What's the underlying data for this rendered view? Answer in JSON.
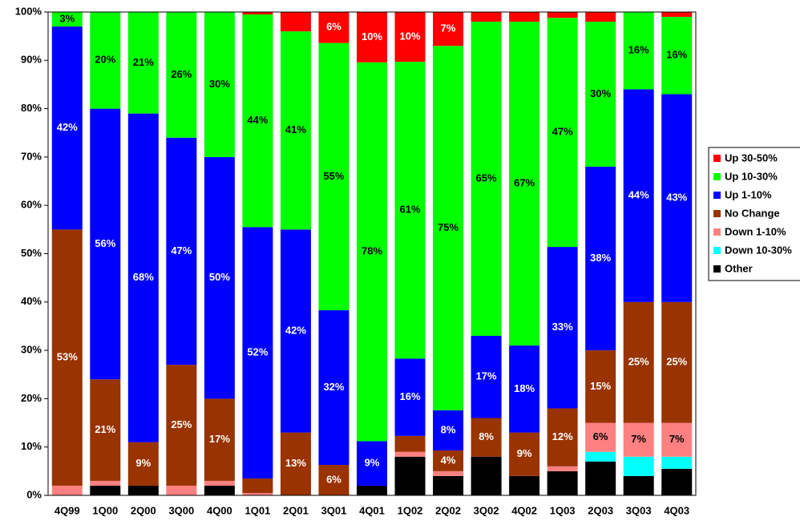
{
  "chart_data": {
    "type": "stacked_bar",
    "categories": [
      "4Q99",
      "1Q00",
      "2Q00",
      "3Q00",
      "4Q00",
      "1Q01",
      "2Q01",
      "3Q01",
      "4Q01",
      "1Q02",
      "2Q02",
      "3Q02",
      "4Q02",
      "1Q03",
      "2Q03",
      "3Q03",
      "4Q03"
    ],
    "series": [
      {
        "name": "Other",
        "color": "#000000",
        "label_color": "#ffffff",
        "values": [
          0,
          2,
          2,
          0,
          2,
          0,
          0,
          0,
          2,
          8,
          4,
          8,
          4,
          5,
          7,
          4,
          5.5
        ],
        "value_labels": [
          null,
          null,
          null,
          null,
          null,
          null,
          null,
          null,
          null,
          null,
          null,
          null,
          null,
          null,
          null,
          null,
          null
        ]
      },
      {
        "name": "Down 10-30%",
        "color": "#00ffff",
        "label_color": "#000000",
        "values": [
          0,
          0,
          0,
          0,
          0,
          0,
          0,
          0,
          0,
          0,
          0,
          0,
          0,
          0,
          2,
          4,
          2.5
        ],
        "value_labels": [
          null,
          null,
          null,
          null,
          null,
          null,
          null,
          null,
          null,
          null,
          null,
          null,
          null,
          null,
          null,
          null,
          null
        ]
      },
      {
        "name": "Down 1-10%",
        "color": "#ff8080",
        "label_color": "#000000",
        "values": [
          2,
          1,
          0,
          2,
          1,
          0.5,
          0,
          0,
          0,
          1,
          1,
          0,
          0,
          1,
          6,
          7,
          7
        ],
        "value_labels": [
          null,
          null,
          null,
          null,
          null,
          null,
          null,
          null,
          null,
          null,
          null,
          null,
          null,
          null,
          "6%",
          "7%",
          "7%"
        ]
      },
      {
        "name": "No Change",
        "color": "#993300",
        "label_color": "#ffffff",
        "values": [
          53,
          21,
          9,
          25,
          17,
          3,
          13,
          6.3,
          0,
          3.3,
          4.3,
          8,
          9,
          12,
          15,
          25,
          25
        ],
        "value_labels": [
          "53%",
          "21%",
          "9%",
          "25%",
          "17%",
          null,
          "13%",
          "6%",
          null,
          null,
          "4%",
          "8%",
          "9%",
          "12%",
          "15%",
          "25%",
          "25%"
        ]
      },
      {
        "name": "Up 1-10%",
        "color": "#0000ff",
        "label_color": "#ffffff",
        "values": [
          42,
          56,
          68,
          47,
          50,
          52,
          42,
          32,
          9.2,
          16,
          8.3,
          17,
          18,
          33.4,
          38,
          44,
          43
        ],
        "value_labels": [
          "42%",
          "56%",
          "68%",
          "47%",
          "50%",
          "52%",
          "42%",
          "32%",
          "9%",
          "16%",
          "8%",
          "17%",
          "18%",
          "33%",
          "38%",
          "44%",
          "43%"
        ]
      },
      {
        "name": "Up 10-30%",
        "color": "#00ff00",
        "label_color": "#000000",
        "values": [
          3,
          20,
          21,
          26,
          30,
          44,
          41,
          55.3,
          78.4,
          61.4,
          75.4,
          65,
          67,
          47.4,
          30,
          16,
          16
        ],
        "value_labels": [
          "3%",
          "20%",
          "21%",
          "26%",
          "30%",
          "44%",
          "41%",
          "55%",
          "78%",
          "61%",
          "75%",
          "65%",
          "67%",
          "47%",
          "30%",
          "16%",
          "16%"
        ]
      },
      {
        "name": "Up 30-50%",
        "color": "#ff0000",
        "label_color": "#ffffff",
        "values": [
          0,
          0,
          0,
          0,
          0,
          0.5,
          4,
          6.4,
          10.4,
          10.3,
          7,
          2,
          2,
          1.2,
          2,
          0,
          1
        ],
        "value_labels": [
          null,
          null,
          null,
          null,
          null,
          null,
          null,
          "6%",
          "10%",
          "10%",
          "7%",
          null,
          null,
          null,
          null,
          null,
          null
        ]
      }
    ],
    "ylim": [
      0,
      100
    ],
    "yticks": [
      {
        "value": 0,
        "label": "0%"
      },
      {
        "value": 10,
        "label": "10%"
      },
      {
        "value": 20,
        "label": "20%"
      },
      {
        "value": 30,
        "label": "30%"
      },
      {
        "value": 40,
        "label": "40%"
      },
      {
        "value": 50,
        "label": "50%"
      },
      {
        "value": 60,
        "label": "60%"
      },
      {
        "value": 70,
        "label": "70%"
      },
      {
        "value": 80,
        "label": "80%"
      },
      {
        "value": 90,
        "label": "90%"
      },
      {
        "value": 100,
        "label": "100%"
      }
    ],
    "grid": false,
    "legend": "right"
  }
}
